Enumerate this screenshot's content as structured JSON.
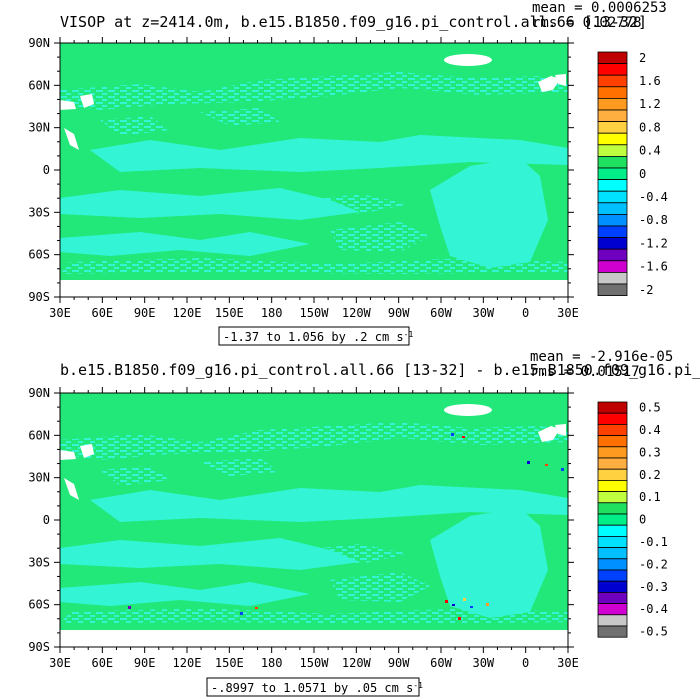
{
  "chart_data": [
    {
      "type": "heatmap",
      "title": "VISOP at z=2414.0m, b.e15.B1850.f09_g16.pi_control.all.66 [13-32]",
      "stats": {
        "mean": "mean = 0.0006253",
        "rms": "rms = 0.02778"
      },
      "lat_ticks": [
        "90N",
        "60N",
        "30N",
        "0",
        "30S",
        "60S",
        "90S"
      ],
      "lon_ticks": [
        "30E",
        "60E",
        "90E",
        "120E",
        "150E",
        "180",
        "150W",
        "120W",
        "90W",
        "60W",
        "30W",
        "0",
        "30E"
      ],
      "range_label": "-1.37 to 1.056 by .2 cm s",
      "range_unit_exp": "-1",
      "colorbar": {
        "labels": [
          "2",
          "1.6",
          "1.2",
          "0.8",
          "0.4",
          "0",
          "-0.4",
          "-0.8",
          "-1.2",
          "-1.6",
          "-2"
        ],
        "levels": [
          2.0,
          1.8,
          1.6,
          1.4,
          1.2,
          1.0,
          0.8,
          0.6,
          0.4,
          0.2,
          0.0,
          -0.2,
          -0.4,
          -0.6,
          -0.8,
          -1.0,
          -1.2,
          -1.4,
          -1.6,
          -1.8,
          -2.0
        ],
        "colors": [
          "#c00000",
          "#ff0000",
          "#ff4000",
          "#ff7000",
          "#ff9a20",
          "#ffae40",
          "#ffd040",
          "#ffff00",
          "#c0ff40",
          "#20e060",
          "#00ee88",
          "#00ffff",
          "#00e0ff",
          "#00c0ff",
          "#0090ff",
          "#0040ff",
          "#0000d0",
          "#7000c0",
          "#d000d0",
          "#c8c8c8",
          "#707070"
        ]
      }
    },
    {
      "type": "heatmap",
      "title": "b.e15.B1850.f09_g16.pi_control.all.66 [13-32] - b.e15.B1850.f09_g16.pi_control",
      "stats": {
        "mean": "mean = -2.916e-05",
        "rms": "rms = 0.01517"
      },
      "lat_ticks": [
        "90N",
        "60N",
        "30N",
        "0",
        "30S",
        "60S",
        "90S"
      ],
      "lon_ticks": [
        "30E",
        "60E",
        "90E",
        "120E",
        "150E",
        "180",
        "150W",
        "120W",
        "90W",
        "60W",
        "30W",
        "0",
        "30E"
      ],
      "range_label": "-.8997 to 1.0571 by .05 cm s",
      "range_unit_exp": "-1",
      "colorbar": {
        "labels": [
          "0.5",
          "0.4",
          "0.3",
          "0.2",
          "0.1",
          "0",
          "-0.1",
          "-0.2",
          "-0.3",
          "-0.4",
          "-0.5"
        ],
        "levels": [
          0.5,
          0.45,
          0.4,
          0.35,
          0.3,
          0.25,
          0.2,
          0.15,
          0.1,
          0.05,
          0.0,
          -0.05,
          -0.1,
          -0.15,
          -0.2,
          -0.25,
          -0.3,
          -0.35,
          -0.4,
          -0.45,
          -0.5
        ],
        "colors": [
          "#c00000",
          "#ff0000",
          "#ff4000",
          "#ff7000",
          "#ff9a20",
          "#ffae40",
          "#ffd040",
          "#ffff00",
          "#c0ff40",
          "#20e060",
          "#00ee88",
          "#00ffff",
          "#00e0ff",
          "#00c0ff",
          "#0090ff",
          "#0040ff",
          "#0000d0",
          "#7000c0",
          "#d000d0",
          "#c8c8c8",
          "#707070"
        ]
      }
    }
  ],
  "map_colors": {
    "ocean_base": "#22e87a",
    "ocean_anomaly": "#33f5d5",
    "land": "#ffffff"
  }
}
